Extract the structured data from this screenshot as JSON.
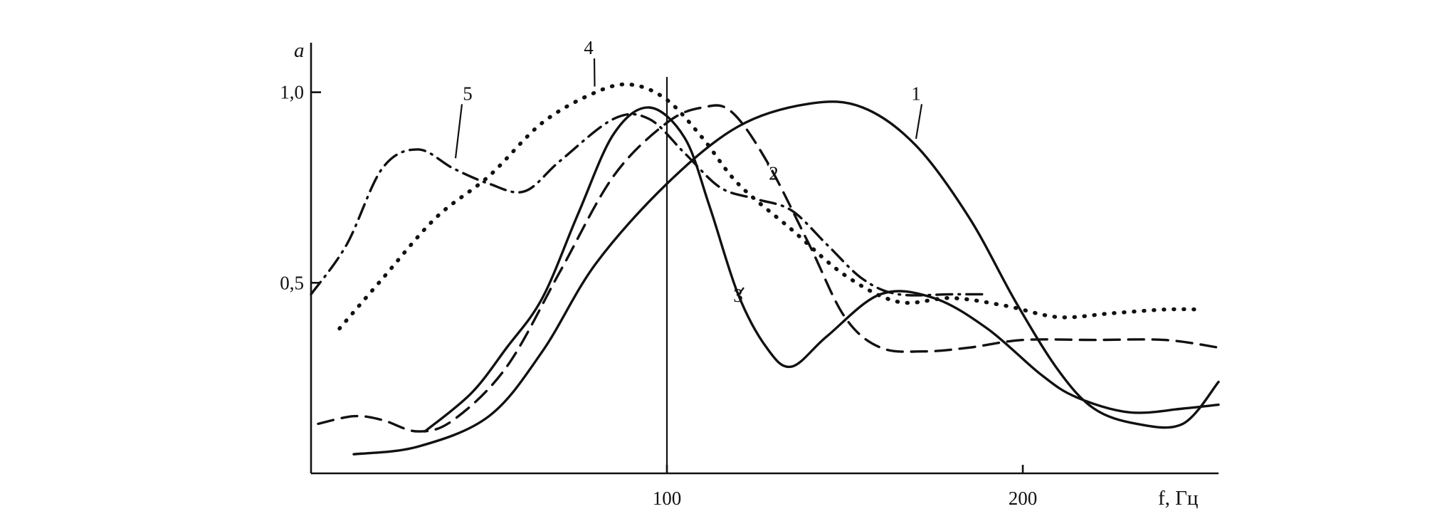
{
  "chart_data": {
    "type": "line",
    "title": "",
    "ylabel": "a",
    "xlabel": "f, Гц",
    "xlim": [
      0,
      255
    ],
    "ylim": [
      0,
      1.13
    ],
    "x_ticks": [
      100,
      200
    ],
    "x_tick_labels": [
      "100",
      "200"
    ],
    "y_ticks": [
      0.5,
      1.0
    ],
    "y_tick_labels": [
      "0,5",
      "1,0"
    ],
    "grid": false,
    "reference_line_x": 100,
    "series": [
      {
        "name": "1",
        "style": "solid",
        "label_at": [
          170,
          0.98
        ],
        "points": [
          [
            12,
            0.05
          ],
          [
            30,
            0.07
          ],
          [
            50,
            0.15
          ],
          [
            65,
            0.32
          ],
          [
            80,
            0.55
          ],
          [
            100,
            0.76
          ],
          [
            120,
            0.91
          ],
          [
            140,
            0.97
          ],
          [
            155,
            0.96
          ],
          [
            170,
            0.86
          ],
          [
            185,
            0.67
          ],
          [
            198,
            0.45
          ],
          [
            210,
            0.27
          ],
          [
            220,
            0.17
          ],
          [
            232,
            0.13
          ],
          [
            245,
            0.13
          ],
          [
            255,
            0.24
          ]
        ]
      },
      {
        "name": "2",
        "style": "dashed",
        "label_at": [
          130,
          0.77
        ],
        "points": [
          [
            2,
            0.13
          ],
          [
            12,
            0.15
          ],
          [
            20,
            0.14
          ],
          [
            30,
            0.11
          ],
          [
            40,
            0.14
          ],
          [
            55,
            0.28
          ],
          [
            70,
            0.53
          ],
          [
            85,
            0.78
          ],
          [
            100,
            0.92
          ],
          [
            110,
            0.96
          ],
          [
            118,
            0.95
          ],
          [
            128,
            0.82
          ],
          [
            140,
            0.6
          ],
          [
            150,
            0.41
          ],
          [
            160,
            0.33
          ],
          [
            172,
            0.32
          ],
          [
            185,
            0.33
          ],
          [
            200,
            0.35
          ],
          [
            220,
            0.35
          ],
          [
            240,
            0.35
          ],
          [
            255,
            0.33
          ]
        ]
      },
      {
        "name": "3",
        "style": "solid",
        "label_at": [
          120,
          0.45
        ],
        "points": [
          [
            32,
            0.11
          ],
          [
            45,
            0.21
          ],
          [
            55,
            0.33
          ],
          [
            65,
            0.46
          ],
          [
            75,
            0.68
          ],
          [
            85,
            0.89
          ],
          [
            95,
            0.96
          ],
          [
            105,
            0.88
          ],
          [
            112,
            0.7
          ],
          [
            120,
            0.47
          ],
          [
            128,
            0.33
          ],
          [
            135,
            0.28
          ],
          [
            145,
            0.36
          ],
          [
            160,
            0.47
          ],
          [
            175,
            0.46
          ],
          [
            190,
            0.38
          ],
          [
            205,
            0.26
          ],
          [
            215,
            0.2
          ],
          [
            230,
            0.16
          ],
          [
            245,
            0.17
          ],
          [
            255,
            0.18
          ]
        ]
      },
      {
        "name": "4",
        "style": "dotted",
        "label_at": [
          78,
          1.1
        ],
        "points": [
          [
            8,
            0.38
          ],
          [
            20,
            0.51
          ],
          [
            35,
            0.67
          ],
          [
            50,
            0.78
          ],
          [
            65,
            0.92
          ],
          [
            80,
            1.0
          ],
          [
            90,
            1.02
          ],
          [
            100,
            0.98
          ],
          [
            110,
            0.88
          ],
          [
            120,
            0.76
          ],
          [
            135,
            0.64
          ],
          [
            150,
            0.52
          ],
          [
            165,
            0.45
          ],
          [
            180,
            0.46
          ],
          [
            195,
            0.44
          ],
          [
            210,
            0.41
          ],
          [
            225,
            0.42
          ],
          [
            240,
            0.43
          ],
          [
            250,
            0.43
          ]
        ]
      },
      {
        "name": "5",
        "style": "dashdot",
        "label_at": [
          44,
          0.98
        ],
        "points": [
          [
            0,
            0.47
          ],
          [
            10,
            0.6
          ],
          [
            20,
            0.8
          ],
          [
            30,
            0.85
          ],
          [
            40,
            0.8
          ],
          [
            50,
            0.76
          ],
          [
            60,
            0.74
          ],
          [
            70,
            0.82
          ],
          [
            85,
            0.93
          ],
          [
            95,
            0.93
          ],
          [
            105,
            0.84
          ],
          [
            115,
            0.75
          ],
          [
            125,
            0.72
          ],
          [
            135,
            0.69
          ],
          [
            145,
            0.6
          ],
          [
            155,
            0.51
          ],
          [
            165,
            0.47
          ],
          [
            180,
            0.47
          ],
          [
            190,
            0.47
          ]
        ]
      }
    ]
  }
}
